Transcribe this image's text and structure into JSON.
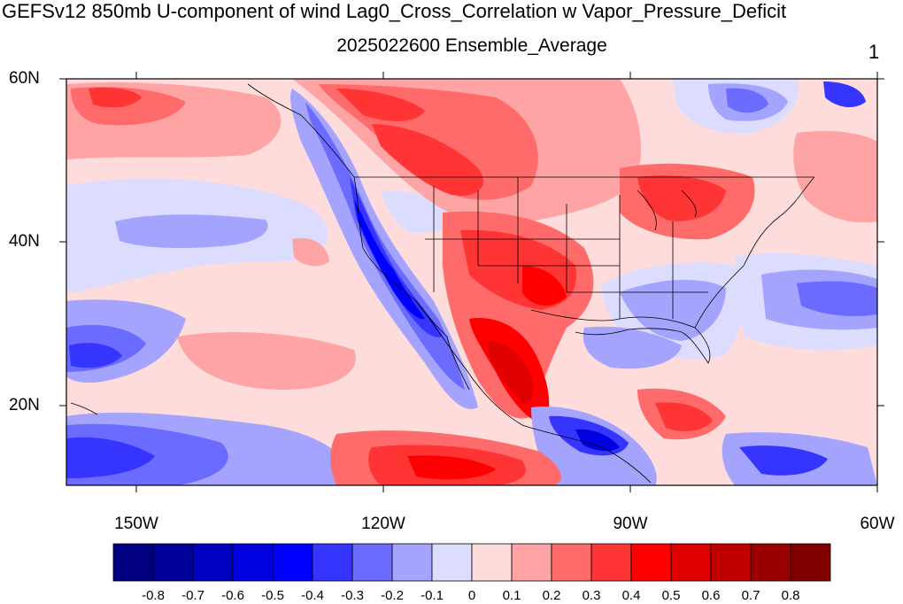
{
  "title": "GEFSv12 850mb U-component of wind Lag0_Cross_Correlation w Vapor_Pressure_Deficit",
  "subtitle": "2025022600 Ensemble_Average",
  "corner_label": "1",
  "lat_labels": [
    "60N",
    "40N",
    "20N"
  ],
  "lon_labels": [
    "150W",
    "120W",
    "90W",
    "60W"
  ],
  "colorbar": {
    "colors": [
      "#000080",
      "#00009a",
      "#0000c0",
      "#0000e0",
      "#0000ff",
      "#3535ff",
      "#6b6bff",
      "#a4a4ff",
      "#dcdcff",
      "#ffdcdc",
      "#ffa4a4",
      "#ff6b6b",
      "#ff3535",
      "#ff0000",
      "#e00000",
      "#c00000",
      "#9a0000",
      "#800000"
    ],
    "tick_labels": [
      "-0.8",
      "-0.7",
      "-0.6",
      "-0.5",
      "-0.4",
      "-0.3",
      "-0.2",
      "-0.1",
      "0",
      "0.1",
      "0.2",
      "0.3",
      "0.4",
      "0.5",
      "0.6",
      "0.7",
      "0.8"
    ]
  }
}
